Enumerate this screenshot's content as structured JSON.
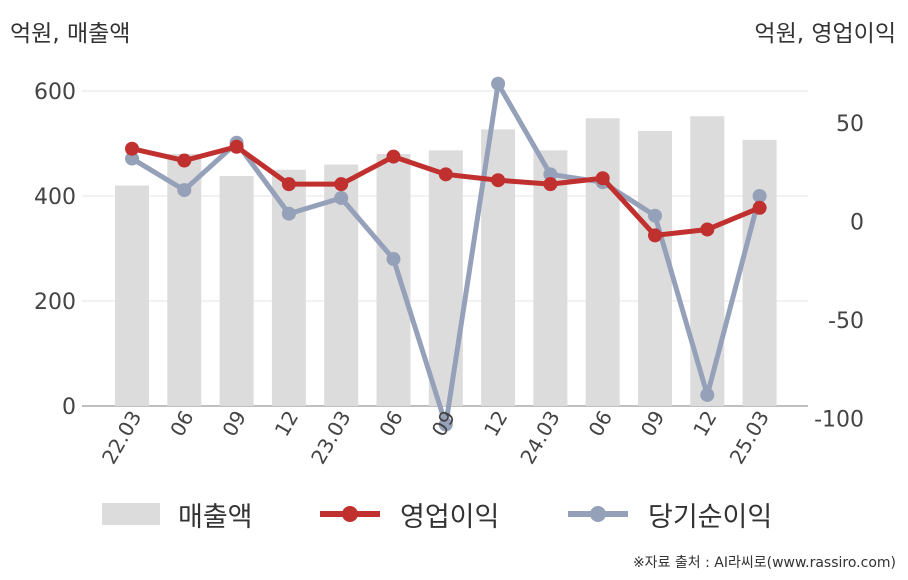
{
  "unit_left": "억원, 매출액",
  "unit_right": "억원, 영업이익",
  "source": "※자료 출처 : AI라씨로(www.rassiro.com)",
  "colors": {
    "bar": "#dcdcdc",
    "operating": "#c0302f",
    "net": "#95a0b9",
    "grid": "#e6e6e6"
  },
  "chart_data": {
    "type": "bar+line",
    "categories": [
      "22.03",
      "06",
      "09",
      "12",
      "23.03",
      "06",
      "09",
      "12",
      "24.03",
      "06",
      "09",
      "12",
      "25.03"
    ],
    "left_axis": {
      "ylim": [
        0,
        600
      ],
      "ticks": [
        0,
        200,
        400,
        600
      ]
    },
    "right_axis": {
      "ylim": [
        -120,
        80
      ],
      "ticks": [
        -100,
        -50,
        0,
        50
      ]
    },
    "series": [
      {
        "name": "매출액",
        "type": "bar",
        "axis": "left",
        "values": [
          420,
          480,
          438,
          450,
          460,
          480,
          487,
          527,
          487,
          548,
          524,
          552,
          507
        ]
      },
      {
        "name": "영업이익",
        "type": "line",
        "axis": "right",
        "values": [
          37,
          31,
          38,
          19,
          19,
          33,
          24,
          21,
          19,
          22,
          -7,
          -4,
          7
        ]
      },
      {
        "name": "당기순이익",
        "type": "line",
        "axis": "right",
        "values": [
          32,
          16,
          40,
          4,
          12,
          -19,
          -103,
          70,
          24,
          20,
          3,
          -88,
          13
        ]
      }
    ]
  }
}
